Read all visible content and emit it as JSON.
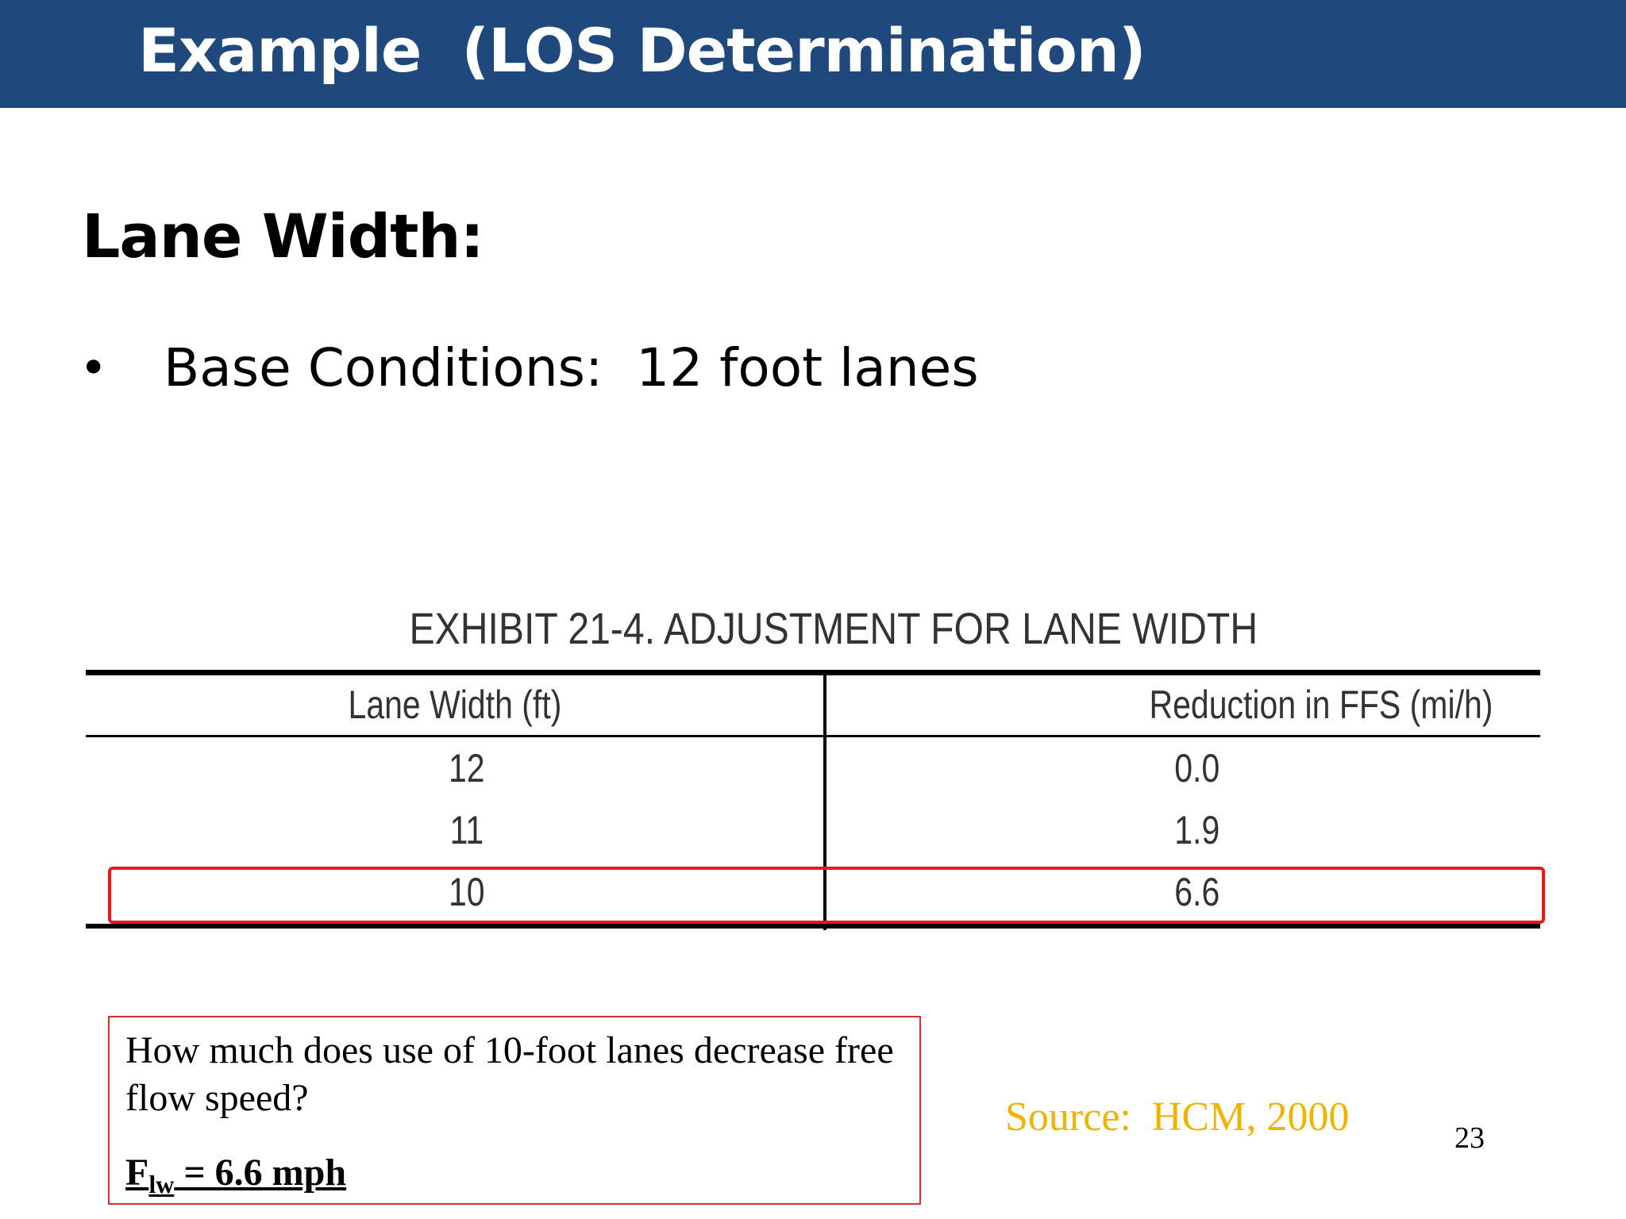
{
  "slide": {
    "title": "Example  (LOS Determination)",
    "heading": "Lane Width:",
    "bullet_marker": "•",
    "bullet_text": "Base Conditions:  12 foot lanes",
    "page_number": "23",
    "title_bar_color": "#1f497d"
  },
  "exhibit": {
    "caption": "EXHIBIT 21-4.  ADJUSTMENT FOR LANE WIDTH",
    "columns": [
      "Lane Width (ft)",
      "Reduction in FFS (mi/h)"
    ],
    "rows": [
      [
        "12",
        "0.0"
      ],
      [
        "11",
        "1.9"
      ],
      [
        "10",
        "6.6"
      ]
    ],
    "highlighted_row": 2,
    "highlight_color": "#e81919"
  },
  "question_box": {
    "question": "How much does use of 10-foot lanes decrease free flow speed?",
    "answer_symbol": "F",
    "answer_subscript": "lw",
    "answer_value": " = 6.6 mph"
  },
  "source": {
    "text": "Source:  HCM, 2000",
    "color": "#f0b400"
  }
}
